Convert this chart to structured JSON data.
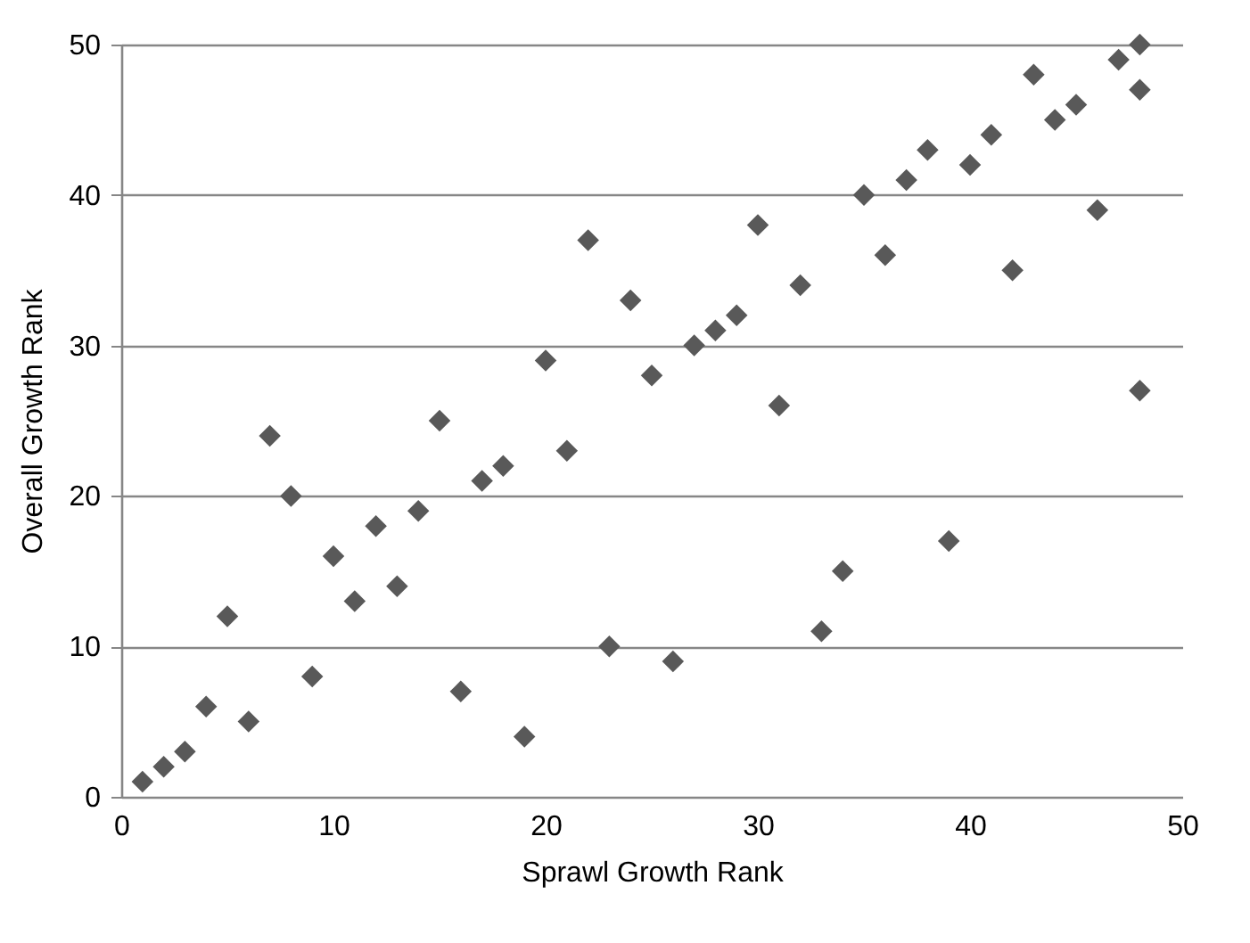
{
  "chart_data": {
    "type": "scatter",
    "xlabel": "Sprawl Growth Rank",
    "ylabel": "Overall Growth Rank",
    "x": [
      1,
      2,
      3,
      4,
      5,
      6,
      7,
      8,
      9,
      10,
      11,
      12,
      13,
      14,
      15,
      16,
      17,
      18,
      19,
      20,
      21,
      22,
      23,
      24,
      25,
      26,
      27,
      28,
      29,
      30,
      31,
      32,
      33,
      34,
      35,
      36,
      37,
      38,
      39,
      40,
      41,
      42,
      43,
      44,
      45,
      46,
      47,
      48,
      48,
      48
    ],
    "series": [
      {
        "color": "#595959",
        "values": [
          1,
          2,
          3,
          6,
          12,
          5,
          24,
          20,
          8,
          16,
          13,
          18,
          14,
          19,
          25,
          7,
          21,
          22,
          4,
          29,
          23,
          37,
          10,
          33,
          28,
          9,
          30,
          31,
          32,
          38,
          26,
          34,
          11,
          15,
          40,
          36,
          41,
          43,
          17,
          42,
          44,
          35,
          48,
          45,
          46,
          39,
          49,
          50,
          47,
          27
        ]
      }
    ],
    "xlim": [
      0,
      50
    ],
    "xticks": [
      0,
      10,
      20,
      30,
      40,
      50
    ],
    "ylim": [
      0,
      50
    ],
    "yticks": [
      0,
      10,
      20,
      30,
      40,
      50
    ],
    "grid": "y",
    "marker": "diamond"
  }
}
